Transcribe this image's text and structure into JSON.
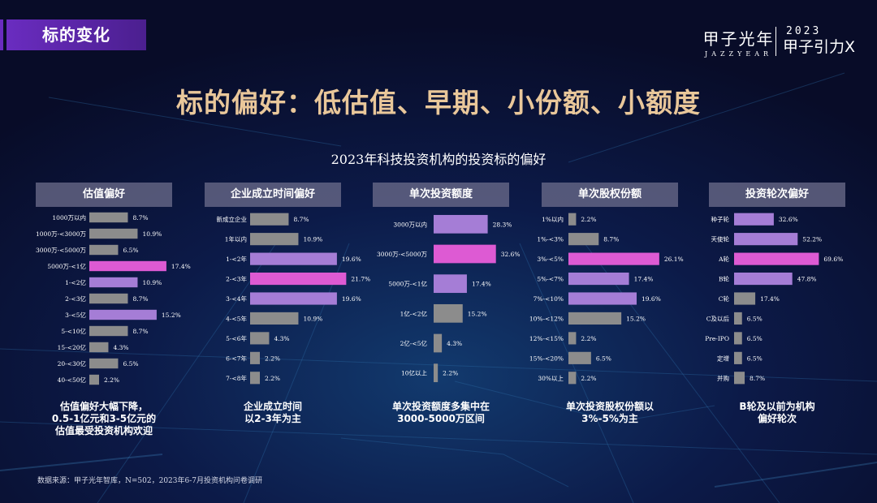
{
  "section_tag": "标的变化",
  "brand": {
    "name_cn": "甲子光年",
    "name_en": "JAZZYEAR",
    "event": "2023 甲子引力X"
  },
  "headline": "标的偏好：低估值、早期、小份额、小额度",
  "subtitle": "2023年科技投资机构的投资标的偏好",
  "source": "数据来源：甲子光年智库，N=502，2023年6-7月投资机构问卷调研",
  "colors": {
    "gray": "#8c8c8c",
    "purple": "#a57dd6",
    "pink": "#dd5ad3",
    "headline": "#e9c79a"
  },
  "chart_data": [
    {
      "type": "bar",
      "orientation": "horizontal",
      "title": "估值偏好",
      "categories": [
        "1000万以内",
        "1000万-<3000万",
        "3000万-<5000万",
        "5000万-<1亿",
        "1-<2亿",
        "2-<3亿",
        "3-<5亿",
        "5-<10亿",
        "15-<20亿",
        "20-<30亿",
        "40-<50亿"
      ],
      "values": [
        8.7,
        10.9,
        6.5,
        17.4,
        10.9,
        8.7,
        15.2,
        8.7,
        4.3,
        6.5,
        2.2
      ],
      "labels": [
        "8.7%",
        "10.9%",
        "6.5%",
        "17.4%",
        "10.9%",
        "8.7%",
        "15.2%",
        "8.7%",
        "4.3%",
        "6.5%",
        "2.2%"
      ],
      "bar_colors": [
        "gray",
        "gray",
        "gray",
        "pink",
        "purple",
        "gray",
        "purple",
        "gray",
        "gray",
        "gray",
        "gray"
      ],
      "unit": "%",
      "caption": [
        "估值偏好大幅下降，",
        "0.5-1亿元和3-5亿元的",
        "估值最受投资机构欢迎"
      ]
    },
    {
      "type": "bar",
      "orientation": "horizontal",
      "title": "企业成立时间偏好",
      "categories": [
        "新成立企业",
        "1年以内",
        "1-<2年",
        "2-<3年",
        "3-<4年",
        "4-<5年",
        "5-<6年",
        "6-<7年",
        "7-<8年"
      ],
      "values": [
        8.7,
        10.9,
        19.6,
        21.7,
        19.6,
        10.9,
        4.3,
        2.2,
        2.2
      ],
      "labels": [
        "8.7%",
        "10.9%",
        "19.6%",
        "21.7%",
        "19.6%",
        "10.9%",
        "4.3%",
        "2.2%",
        "2.2%"
      ],
      "bar_colors": [
        "gray",
        "gray",
        "purple",
        "pink",
        "purple",
        "gray",
        "gray",
        "gray",
        "gray"
      ],
      "unit": "%",
      "caption": [
        "企业成立时间",
        "以2-3年为主"
      ]
    },
    {
      "type": "bar",
      "orientation": "horizontal",
      "title": "单次投资额度",
      "categories": [
        "3000万以内",
        "3000万-<5000万",
        "5000万-<1亿",
        "1亿-<2亿",
        "2亿-<5亿",
        "10亿以上"
      ],
      "values": [
        28.3,
        32.6,
        17.4,
        15.2,
        4.3,
        2.2
      ],
      "labels": [
        "28.3%",
        "32.6%",
        "17.4%",
        "15.2%",
        "4.3%",
        "2.2%"
      ],
      "bar_colors": [
        "purple",
        "pink",
        "purple",
        "gray",
        "gray",
        "gray"
      ],
      "unit": "%",
      "caption": [
        "单次投资额度多集中在",
        "3000-5000万区间"
      ]
    },
    {
      "type": "bar",
      "orientation": "horizontal",
      "title": "单次股权份额",
      "categories": [
        "1%以内",
        "1%-<3%",
        "3%-<5%",
        "5%-<7%",
        "7%-<10%",
        "10%-<12%",
        "12%-<15%",
        "15%-<20%",
        "30%以上"
      ],
      "values": [
        2.2,
        8.7,
        26.1,
        17.4,
        19.6,
        15.2,
        2.2,
        6.5,
        2.2
      ],
      "labels": [
        "2.2%",
        "8.7%",
        "26.1%",
        "17.4%",
        "19.6%",
        "15.2%",
        "2.2%",
        "6.5%",
        "2.2%"
      ],
      "bar_colors": [
        "gray",
        "gray",
        "pink",
        "purple",
        "purple",
        "gray",
        "gray",
        "gray",
        "gray"
      ],
      "unit": "%",
      "caption": [
        "单次投资股权份额以",
        "3%-5%为主"
      ]
    },
    {
      "type": "bar",
      "orientation": "horizontal",
      "title": "投资轮次偏好",
      "categories": [
        "种子轮",
        "天使轮",
        "A轮",
        "B轮",
        "C轮",
        "C及以后",
        "Pre-IPO",
        "定增",
        "并购"
      ],
      "values": [
        32.6,
        52.2,
        69.6,
        47.8,
        17.4,
        6.5,
        6.5,
        6.5,
        8.7
      ],
      "labels": [
        "32.6%",
        "52.2%",
        "69.6%",
        "47.8%",
        "17.4%",
        "6.5%",
        "6.5%",
        "6.5%",
        "8.7%"
      ],
      "bar_colors": [
        "purple",
        "purple",
        "pink",
        "purple",
        "gray",
        "gray",
        "gray",
        "gray",
        "gray"
      ],
      "unit": "%",
      "caption": [
        "B轮及以前为机构",
        "偏好轮次"
      ]
    }
  ]
}
